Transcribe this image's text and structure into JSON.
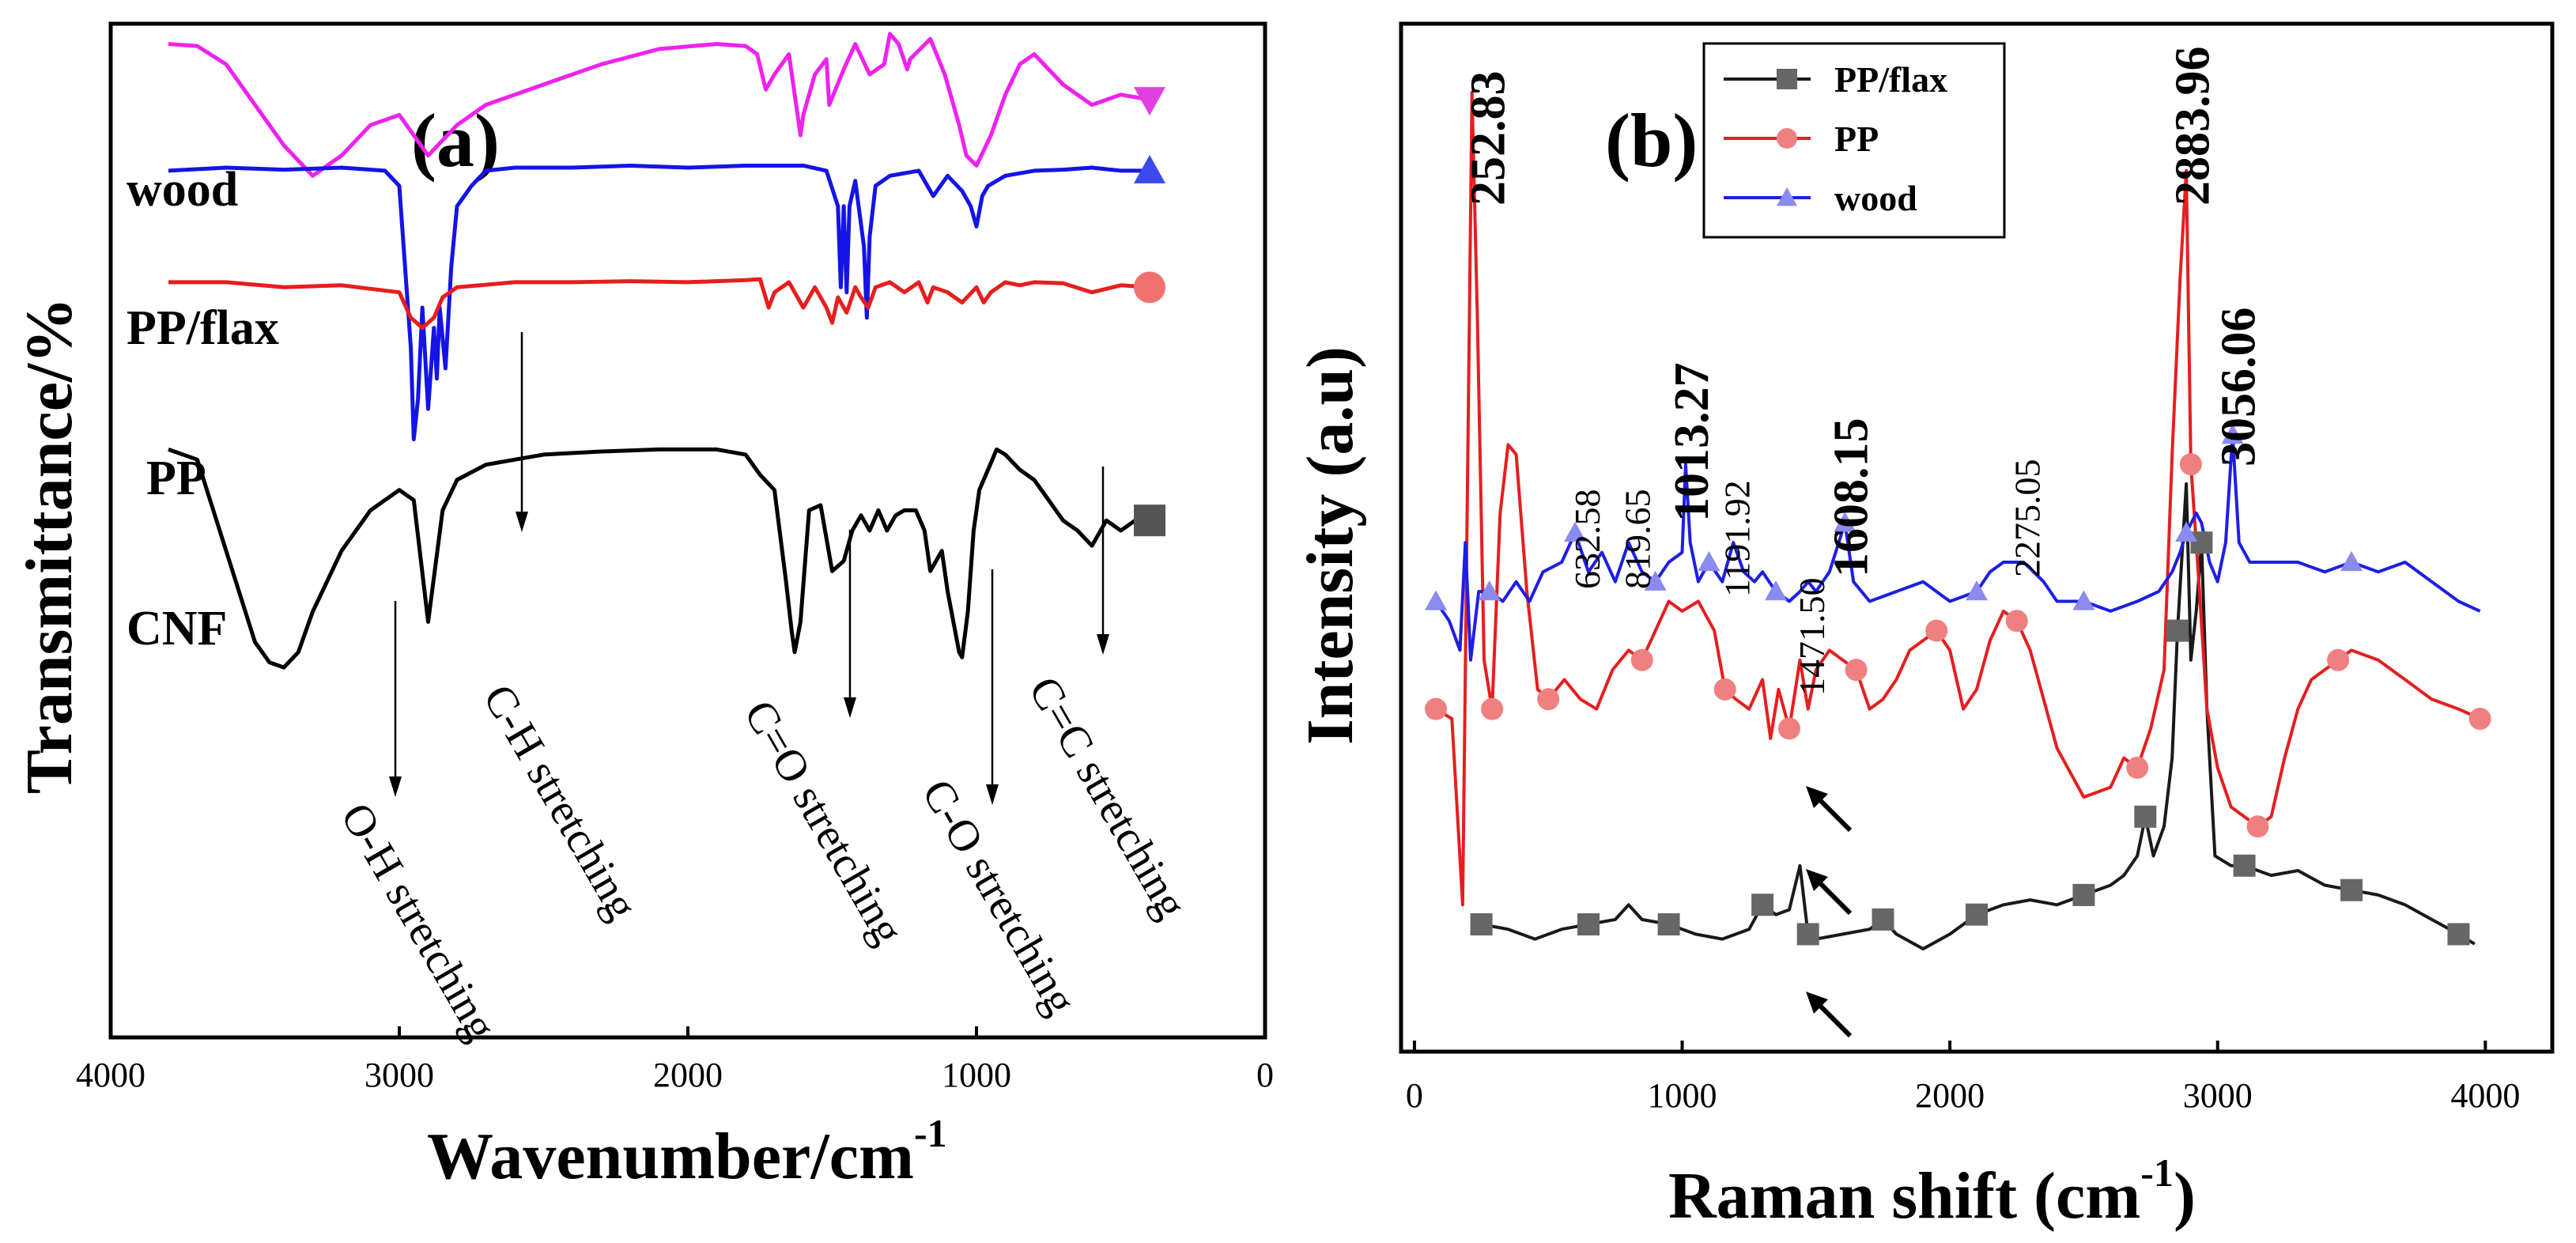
{
  "chart_data": [
    {
      "panel": "(a)",
      "type": "line",
      "xlabel": "Wavenumber/cm",
      "xlabel_sup": "-1",
      "ylabel": "Transmittance/%",
      "xlim": [
        4000,
        0
      ],
      "ylim": [
        0,
        10
      ],
      "xticks": [
        "4000",
        "3000",
        "2000",
        "1000",
        "0"
      ],
      "series": [
        {
          "name": "wood",
          "color": "#ee22ee",
          "marker": "triangle-down",
          "x": [
            3800,
            3700,
            3600,
            3500,
            3400,
            3300,
            3200,
            3100,
            3000,
            2950,
            2900,
            2850,
            2800,
            2700,
            2500,
            2300,
            2100,
            1900,
            1800,
            1760,
            1730,
            1700,
            1650,
            1630,
            1610,
            1600,
            1560,
            1520,
            1510,
            1460,
            1420,
            1370,
            1320,
            1300,
            1270,
            1240,
            1230,
            1160,
            1110,
            1060,
            1035,
            1000,
            950,
            900,
            850,
            800,
            700,
            600,
            500,
            400
          ],
          "y": [
            9.8,
            9.78,
            9.6,
            9.2,
            8.8,
            8.5,
            8.7,
            9.0,
            9.1,
            8.9,
            8.7,
            8.85,
            9.0,
            9.2,
            9.4,
            9.6,
            9.75,
            9.8,
            9.78,
            9.7,
            9.35,
            9.5,
            9.7,
            9.3,
            8.9,
            9.1,
            9.5,
            9.65,
            9.2,
            9.55,
            9.8,
            9.5,
            9.6,
            9.9,
            9.8,
            9.55,
            9.65,
            9.85,
            9.5,
            9.0,
            8.7,
            8.6,
            8.9,
            9.3,
            9.6,
            9.7,
            9.4,
            9.2,
            9.3,
            9.25
          ]
        },
        {
          "name": "PP/flax",
          "color": "#1414e6",
          "marker": "triangle-up",
          "x": [
            3800,
            3600,
            3400,
            3200,
            3050,
            3000,
            2960,
            2950,
            2935,
            2920,
            2900,
            2880,
            2870,
            2860,
            2840,
            2820,
            2800,
            2750,
            2700,
            2600,
            2400,
            2200,
            2000,
            1800,
            1600,
            1520,
            1480,
            1470,
            1460,
            1450,
            1440,
            1420,
            1390,
            1380,
            1370,
            1350,
            1300,
            1200,
            1150,
            1100,
            1050,
            1020,
            1000,
            980,
            960,
            900,
            800,
            700,
            600,
            500,
            400
          ],
          "y": [
            8.55,
            8.58,
            8.56,
            8.58,
            8.55,
            8.4,
            6.8,
            5.9,
            6.3,
            7.2,
            6.2,
            7.0,
            6.5,
            7.2,
            6.6,
            7.6,
            8.2,
            8.4,
            8.55,
            8.58,
            8.58,
            8.6,
            8.58,
            8.6,
            8.6,
            8.55,
            8.2,
            7.4,
            8.2,
            7.35,
            8.2,
            8.45,
            7.8,
            7.1,
            7.9,
            8.4,
            8.5,
            8.55,
            8.3,
            8.5,
            8.35,
            8.2,
            8.0,
            8.3,
            8.4,
            8.5,
            8.55,
            8.56,
            8.58,
            8.55,
            8.55
          ]
        },
        {
          "name": "PP",
          "color": "#e61e1e",
          "marker": "circle",
          "x": [
            3800,
            3600,
            3400,
            3200,
            3000,
            2960,
            2920,
            2880,
            2850,
            2800,
            2600,
            2400,
            2200,
            2000,
            1800,
            1750,
            1720,
            1700,
            1650,
            1600,
            1560,
            1520,
            1500,
            1480,
            1450,
            1420,
            1400,
            1375,
            1350,
            1300,
            1250,
            1200,
            1170,
            1150,
            1100,
            1050,
            1000,
            975,
            950,
            900,
            850,
            800,
            700,
            600,
            500,
            400
          ],
          "y": [
            7.45,
            7.45,
            7.4,
            7.42,
            7.35,
            7.1,
            7.0,
            7.1,
            7.3,
            7.4,
            7.45,
            7.45,
            7.46,
            7.45,
            7.47,
            7.48,
            7.2,
            7.35,
            7.45,
            7.2,
            7.4,
            7.2,
            7.05,
            7.3,
            7.15,
            7.4,
            7.3,
            7.2,
            7.4,
            7.45,
            7.35,
            7.45,
            7.25,
            7.4,
            7.35,
            7.25,
            7.4,
            7.25,
            7.35,
            7.45,
            7.42,
            7.45,
            7.44,
            7.35,
            7.42,
            7.4
          ]
        },
        {
          "name": "CNF",
          "color": "#000000",
          "marker": "square",
          "x": [
            3800,
            3700,
            3600,
            3500,
            3450,
            3400,
            3350,
            3300,
            3200,
            3100,
            3000,
            2950,
            2900,
            2850,
            2800,
            2700,
            2500,
            2300,
            2100,
            1900,
            1800,
            1750,
            1700,
            1660,
            1640,
            1630,
            1610,
            1580,
            1540,
            1500,
            1460,
            1430,
            1400,
            1370,
            1340,
            1310,
            1280,
            1250,
            1210,
            1180,
            1160,
            1120,
            1100,
            1080,
            1060,
            1050,
            1030,
            1010,
            990,
            960,
            930,
            900,
            850,
            800,
            750,
            700,
            650,
            600,
            550,
            500,
            450,
            400
          ],
          "y": [
            5.8,
            5.7,
            4.8,
            3.9,
            3.7,
            3.65,
            3.8,
            4.2,
            4.8,
            5.2,
            5.4,
            5.3,
            4.1,
            5.2,
            5.5,
            5.65,
            5.75,
            5.78,
            5.8,
            5.8,
            5.75,
            5.55,
            5.4,
            4.5,
            4.0,
            3.8,
            4.1,
            5.2,
            5.25,
            4.6,
            4.7,
            5.0,
            5.15,
            5.0,
            5.2,
            5.0,
            5.15,
            5.2,
            5.2,
            5.0,
            4.6,
            4.8,
            4.4,
            4.1,
            3.8,
            3.75,
            4.2,
            5.0,
            5.4,
            5.6,
            5.8,
            5.75,
            5.6,
            5.5,
            5.3,
            5.1,
            5.0,
            4.85,
            5.1,
            5.0,
            5.1,
            5.1
          ]
        }
      ],
      "series_labels": [
        "wood",
        "PP/flax",
        "PP",
        "CNF"
      ],
      "annotations": [
        {
          "text": "O-H stretching",
          "x": 3400
        },
        {
          "text": "C-H stretching",
          "x": 2920
        },
        {
          "text": "C=O stretching",
          "x": 1630
        },
        {
          "text": "C-O stretching",
          "x": 1050
        },
        {
          "text": "C=C stretching",
          "x": 620
        }
      ]
    },
    {
      "panel": "(b)",
      "type": "line",
      "xlabel": "Raman shift (cm",
      "xlabel_sup": "-1",
      "xlabel_close": ")",
      "ylabel": "Intensity (a.u)",
      "xlim": [
        -50,
        4250
      ],
      "ylim": [
        -0.05,
        1.0
      ],
      "xticks": [
        "0",
        "1000",
        "2000",
        "3000",
        "4000"
      ],
      "legend": {
        "position": "top-left",
        "entries": [
          "PP/flax",
          "PP",
          "wood"
        ]
      },
      "series": [
        {
          "name": "PP/flax",
          "color": "#1a1a1a",
          "marker": "square",
          "x": [
            250,
            350,
            450,
            550,
            650,
            750,
            800,
            850,
            950,
            1050,
            1150,
            1250,
            1300,
            1350,
            1400,
            1440,
            1470,
            1500,
            1600,
            1700,
            1750,
            1800,
            1900,
            2000,
            2100,
            2200,
            2300,
            2400,
            2500,
            2600,
            2650,
            2700,
            2730,
            2760,
            2800,
            2830,
            2850,
            2883,
            2900,
            2920,
            2940,
            2960,
            2990,
            3050,
            3100,
            3200,
            3300,
            3400,
            3500,
            3600,
            3700,
            3800,
            3900,
            3960
          ],
          "y": [
            0.08,
            0.075,
            0.065,
            0.075,
            0.08,
            0.085,
            0.1,
            0.085,
            0.08,
            0.07,
            0.065,
            0.075,
            0.1,
            0.09,
            0.095,
            0.14,
            0.07,
            0.065,
            0.07,
            0.075,
            0.085,
            0.07,
            0.055,
            0.07,
            0.09,
            0.1,
            0.105,
            0.1,
            0.11,
            0.12,
            0.13,
            0.15,
            0.19,
            0.15,
            0.18,
            0.25,
            0.38,
            0.53,
            0.35,
            0.4,
            0.47,
            0.3,
            0.15,
            0.14,
            0.14,
            0.13,
            0.135,
            0.12,
            0.115,
            0.11,
            0.1,
            0.085,
            0.07,
            0.06
          ]
        },
        {
          "name": "PP",
          "color": "#e61e1e",
          "marker": "circle",
          "x": [
            80,
            140,
            180,
            215,
            235,
            260,
            290,
            320,
            350,
            380,
            420,
            460,
            500,
            560,
            620,
            680,
            740,
            800,
            850,
            900,
            950,
            1000,
            1060,
            1120,
            1160,
            1200,
            1250,
            1300,
            1330,
            1360,
            1400,
            1440,
            1470,
            1500,
            1550,
            1600,
            1650,
            1700,
            1750,
            1800,
            1850,
            1900,
            1950,
            2000,
            2050,
            2100,
            2150,
            2200,
            2250,
            2300,
            2400,
            2500,
            2600,
            2650,
            2700,
            2750,
            2800,
            2830,
            2860,
            2883,
            2900,
            2930,
            2960,
            3000,
            3050,
            3100,
            3150,
            3200,
            3250,
            3300,
            3350,
            3400,
            3450,
            3500,
            3600,
            3700,
            3800,
            3900,
            3980
          ],
          "y": [
            0.3,
            0.29,
            0.1,
            0.93,
            0.7,
            0.35,
            0.3,
            0.5,
            0.57,
            0.56,
            0.42,
            0.32,
            0.31,
            0.33,
            0.31,
            0.3,
            0.34,
            0.36,
            0.35,
            0.38,
            0.41,
            0.4,
            0.41,
            0.38,
            0.32,
            0.31,
            0.3,
            0.33,
            0.27,
            0.32,
            0.28,
            0.35,
            0.3,
            0.34,
            0.36,
            0.35,
            0.34,
            0.3,
            0.31,
            0.33,
            0.36,
            0.37,
            0.38,
            0.36,
            0.3,
            0.32,
            0.37,
            0.4,
            0.39,
            0.36,
            0.26,
            0.21,
            0.22,
            0.25,
            0.24,
            0.28,
            0.34,
            0.56,
            0.74,
            0.85,
            0.55,
            0.43,
            0.3,
            0.24,
            0.2,
            0.19,
            0.18,
            0.19,
            0.25,
            0.3,
            0.33,
            0.34,
            0.35,
            0.36,
            0.35,
            0.33,
            0.31,
            0.3,
            0.29
          ]
        },
        {
          "name": "wood",
          "color": "#1e1ee6",
          "marker": "triangle-up",
          "x": [
            80,
            130,
            170,
            190,
            210,
            240,
            280,
            330,
            380,
            430,
            480,
            550,
            600,
            650,
            700,
            750,
            800,
            850,
            900,
            950,
            1000,
            1013,
            1030,
            1060,
            1100,
            1150,
            1191,
            1230,
            1270,
            1300,
            1350,
            1400,
            1440,
            1471,
            1500,
            1550,
            1608,
            1640,
            1700,
            1800,
            1900,
            2000,
            2100,
            2150,
            2200,
            2275,
            2350,
            2400,
            2500,
            2600,
            2700,
            2780,
            2830,
            2860,
            2883,
            2920,
            2940,
            2970,
            3000,
            3030,
            3056,
            3080,
            3120,
            3200,
            3300,
            3400,
            3500,
            3600,
            3700,
            3800,
            3900,
            3980
          ],
          "y": [
            0.41,
            0.39,
            0.36,
            0.47,
            0.35,
            0.42,
            0.42,
            0.41,
            0.43,
            0.41,
            0.44,
            0.45,
            0.48,
            0.44,
            0.46,
            0.43,
            0.47,
            0.44,
            0.43,
            0.45,
            0.46,
            0.55,
            0.47,
            0.43,
            0.45,
            0.43,
            0.47,
            0.44,
            0.43,
            0.44,
            0.42,
            0.41,
            0.42,
            0.43,
            0.42,
            0.44,
            0.49,
            0.43,
            0.41,
            0.42,
            0.43,
            0.41,
            0.42,
            0.44,
            0.45,
            0.45,
            0.43,
            0.41,
            0.41,
            0.4,
            0.41,
            0.42,
            0.44,
            0.46,
            0.48,
            0.5,
            0.49,
            0.45,
            0.43,
            0.47,
            0.58,
            0.47,
            0.45,
            0.45,
            0.45,
            0.44,
            0.45,
            0.44,
            0.45,
            0.43,
            0.41,
            0.4
          ]
        }
      ],
      "peak_labels": [
        {
          "text": "252.83",
          "x": 252.83,
          "big": true
        },
        {
          "text": "632.58",
          "x": 632.58,
          "big": false
        },
        {
          "text": "819.65",
          "x": 819.65,
          "big": false
        },
        {
          "text": "1013.27",
          "x": 1013.27,
          "big": true
        },
        {
          "text": "1191.92",
          "x": 1191.92,
          "big": false
        },
        {
          "text": "1471.50",
          "x": 1471.5,
          "big": false
        },
        {
          "text": "1608.15",
          "x": 1608.15,
          "big": true
        },
        {
          "text": "2275.05",
          "x": 2275.05,
          "big": false
        },
        {
          "text": "2883.96",
          "x": 2883.96,
          "big": true
        },
        {
          "text": "3056.06",
          "x": 3056.06,
          "big": true
        }
      ]
    }
  ]
}
